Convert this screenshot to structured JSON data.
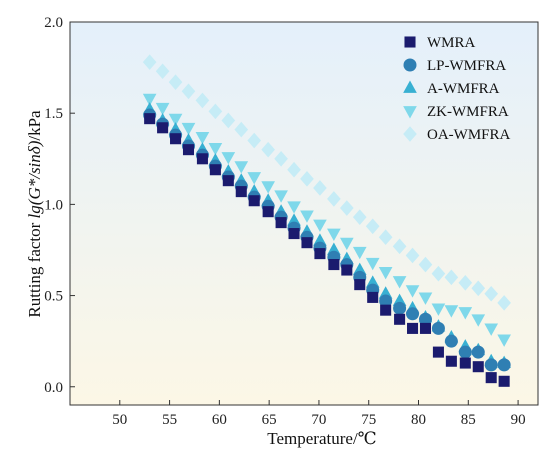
{
  "chart_data": {
    "type": "scatter",
    "xlabel": "Temperature/℃",
    "ylabel_prefix": "Rutting factor ",
    "ylabel_italic": "lg(G*/sinδ)",
    "ylabel_suffix": "/kPa",
    "xlim": [
      45,
      92
    ],
    "ylim": [
      -0.1,
      2.0
    ],
    "xticks": [
      50,
      55,
      60,
      65,
      70,
      75,
      80,
      85,
      90
    ],
    "yticks": [
      0.0,
      0.5,
      1.0,
      1.5,
      2.0
    ],
    "xtick_labels": [
      "50",
      "55",
      "60",
      "65",
      "70",
      "75",
      "80",
      "85",
      "90"
    ],
    "ytick_labels": [
      "0.0",
      "0.5",
      "1.0",
      "1.5",
      "2.0"
    ],
    "legend_position": "top-right",
    "grid": false,
    "background": "light blue-to-cream gradient",
    "x": [
      53.0,
      54.3,
      55.6,
      56.9,
      58.3,
      59.6,
      60.9,
      62.2,
      63.5,
      64.9,
      66.2,
      67.5,
      68.8,
      70.1,
      71.5,
      72.8,
      74.1,
      75.4,
      76.7,
      78.1,
      79.4,
      80.7,
      82.0,
      83.3,
      84.7,
      86.0,
      87.3,
      88.6
    ],
    "series": [
      {
        "name": "WMRA",
        "marker": "square",
        "color": "#1b1b6e",
        "values": [
          1.47,
          1.42,
          1.36,
          1.3,
          1.25,
          1.19,
          1.13,
          1.07,
          1.02,
          0.96,
          0.9,
          0.84,
          0.79,
          0.73,
          0.67,
          0.64,
          0.56,
          0.49,
          0.42,
          0.37,
          0.32,
          0.32,
          0.19,
          0.14,
          0.13,
          0.11,
          0.05,
          0.03
        ]
      },
      {
        "name": "LP-WMFRA",
        "marker": "circle",
        "color": "#2f7fb3",
        "values": [
          1.49,
          1.44,
          1.38,
          1.32,
          1.27,
          1.21,
          1.15,
          1.1,
          1.04,
          0.99,
          0.93,
          0.87,
          0.82,
          0.76,
          0.71,
          0.67,
          0.6,
          0.53,
          0.47,
          0.43,
          0.4,
          0.37,
          0.32,
          0.25,
          0.19,
          0.19,
          0.12,
          0.12
        ]
      },
      {
        "name": "A-WMFRA",
        "marker": "triangle-up",
        "color": "#38b0d2",
        "values": [
          1.52,
          1.46,
          1.41,
          1.35,
          1.3,
          1.24,
          1.18,
          1.13,
          1.07,
          1.02,
          0.96,
          0.91,
          0.85,
          0.8,
          0.75,
          0.7,
          0.64,
          0.57,
          0.51,
          0.47,
          0.43,
          0.38,
          0.33,
          0.27,
          0.22,
          0.2,
          0.14,
          0.13
        ]
      },
      {
        "name": "ZK-WMFRA",
        "marker": "triangle-down",
        "color": "#7fd8ea",
        "values": [
          1.58,
          1.53,
          1.47,
          1.42,
          1.37,
          1.31,
          1.26,
          1.21,
          1.15,
          1.1,
          1.05,
          0.99,
          0.94,
          0.89,
          0.84,
          0.79,
          0.74,
          0.68,
          0.63,
          0.58,
          0.53,
          0.49,
          0.43,
          0.42,
          0.41,
          0.37,
          0.32,
          0.26
        ]
      },
      {
        "name": "OA-WMFRA",
        "marker": "diamond",
        "color": "#c6ecf6",
        "values": [
          1.78,
          1.73,
          1.67,
          1.62,
          1.57,
          1.51,
          1.46,
          1.41,
          1.35,
          1.3,
          1.25,
          1.19,
          1.14,
          1.09,
          1.03,
          0.98,
          0.93,
          0.88,
          0.82,
          0.77,
          0.72,
          0.67,
          0.62,
          0.6,
          0.57,
          0.54,
          0.51,
          0.46
        ]
      }
    ]
  }
}
